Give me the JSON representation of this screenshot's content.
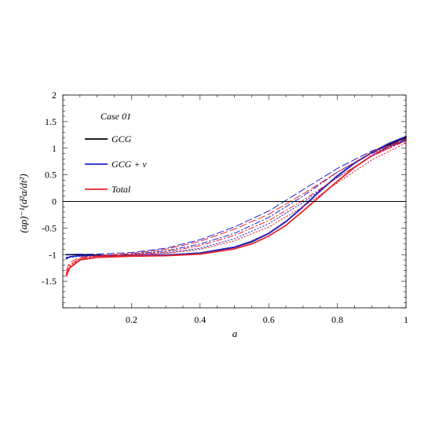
{
  "chart_data": {
    "type": "line",
    "title": "",
    "xlabel": "a",
    "ylabel": "(aρ)⁻¹(d²a/dt²)",
    "xlim": [
      0,
      1
    ],
    "ylim": [
      -2,
      2
    ],
    "x_ticks": [
      0.2,
      0.4,
      0.6,
      0.8,
      1
    ],
    "x_tick_labels": [
      "0.2",
      "0.4",
      "0.6",
      "0.8",
      "1"
    ],
    "y_ticks": [
      -1.5,
      -1,
      -0.5,
      0,
      0.5,
      1,
      1.5,
      2
    ],
    "y_tick_labels": [
      "-1.5",
      "-1",
      "-0.5",
      "0",
      "0.5",
      "1",
      "1.5",
      "2"
    ],
    "grid": false,
    "legend_title": "Case 01",
    "legend": [
      {
        "label": "GCG",
        "color": "#000000"
      },
      {
        "label": "GCG + ν",
        "color": "#1f23c8"
      },
      {
        "label": "Total",
        "color": "#e8212b"
      }
    ],
    "series": [
      {
        "style": "solid",
        "color": "#000000",
        "x": [
          0.01,
          0.05,
          0.1,
          0.2,
          0.3,
          0.4,
          0.5,
          0.55,
          0.6,
          0.65,
          0.7,
          0.75,
          0.8,
          0.85,
          0.9,
          0.95,
          1.0
        ],
        "y": [
          -1.0,
          -1.0,
          -1.01,
          -1.02,
          -1.01,
          -0.97,
          -0.86,
          -0.76,
          -0.6,
          -0.38,
          -0.1,
          0.2,
          0.48,
          0.72,
          0.92,
          1.07,
          1.2
        ]
      },
      {
        "style": "solid",
        "color": "#1f23c8",
        "x": [
          0.01,
          0.02,
          0.05,
          0.1,
          0.2,
          0.3,
          0.4,
          0.5,
          0.55,
          0.6,
          0.65,
          0.7,
          0.75,
          0.8,
          0.85,
          0.9,
          0.95,
          1.0
        ],
        "y": [
          -1.08,
          -1.04,
          -1.02,
          -1.02,
          -1.02,
          -1.01,
          -0.97,
          -0.86,
          -0.75,
          -0.6,
          -0.38,
          -0.1,
          0.2,
          0.48,
          0.72,
          0.92,
          1.09,
          1.22
        ]
      },
      {
        "style": "solid",
        "color": "#e8212b",
        "x": [
          0.01,
          0.02,
          0.05,
          0.1,
          0.2,
          0.3,
          0.4,
          0.5,
          0.55,
          0.6,
          0.65,
          0.7,
          0.75,
          0.8,
          0.85,
          0.9,
          0.95,
          1.0
        ],
        "y": [
          -1.4,
          -1.25,
          -1.1,
          -1.05,
          -1.03,
          -1.02,
          -0.99,
          -0.89,
          -0.8,
          -0.65,
          -0.45,
          -0.18,
          0.1,
          0.38,
          0.64,
          0.86,
          1.03,
          1.15
        ]
      },
      {
        "style": "dashed",
        "color": "#1f23c8",
        "x": [
          0.01,
          0.05,
          0.1,
          0.2,
          0.3,
          0.4,
          0.5,
          0.6,
          0.7,
          0.8,
          0.9,
          1.0
        ],
        "y": [
          -1.0,
          -0.99,
          -0.99,
          -0.96,
          -0.88,
          -0.72,
          -0.48,
          -0.18,
          0.22,
          0.62,
          0.95,
          1.15
        ]
      },
      {
        "style": "dashdot",
        "color": "#1f23c8",
        "x": [
          0.01,
          0.05,
          0.1,
          0.2,
          0.3,
          0.4,
          0.5,
          0.6,
          0.7,
          0.8,
          0.9,
          1.0
        ],
        "y": [
          -1.05,
          -1.02,
          -1.02,
          -0.99,
          -0.93,
          -0.8,
          -0.6,
          -0.3,
          0.1,
          0.55,
          0.9,
          1.17
        ]
      },
      {
        "style": "dotted",
        "color": "#1f23c8",
        "x": [
          0.01,
          0.05,
          0.1,
          0.2,
          0.3,
          0.4,
          0.5,
          0.6,
          0.7,
          0.8,
          0.9,
          1.0
        ],
        "y": [
          -1.06,
          -1.03,
          -1.02,
          -1.0,
          -0.97,
          -0.88,
          -0.7,
          -0.42,
          -0.02,
          0.45,
          0.85,
          1.15
        ]
      },
      {
        "style": "dashed",
        "color": "#e8212b",
        "x": [
          0.01,
          0.02,
          0.05,
          0.1,
          0.2,
          0.3,
          0.4,
          0.5,
          0.6,
          0.7,
          0.8,
          0.9,
          1.0
        ],
        "y": [
          -1.3,
          -1.15,
          -1.05,
          -1.02,
          -0.98,
          -0.9,
          -0.75,
          -0.52,
          -0.24,
          0.14,
          0.55,
          0.92,
          1.18
        ]
      },
      {
        "style": "dashdot",
        "color": "#e8212b",
        "x": [
          0.01,
          0.02,
          0.05,
          0.1,
          0.2,
          0.3,
          0.4,
          0.5,
          0.6,
          0.7,
          0.8,
          0.9,
          1.0
        ],
        "y": [
          -1.35,
          -1.2,
          -1.07,
          -1.03,
          -1.0,
          -0.95,
          -0.83,
          -0.64,
          -0.36,
          0.02,
          0.45,
          0.85,
          1.14
        ]
      },
      {
        "style": "dotted",
        "color": "#e8212b",
        "x": [
          0.01,
          0.02,
          0.05,
          0.1,
          0.2,
          0.3,
          0.4,
          0.5,
          0.6,
          0.7,
          0.8,
          0.9,
          1.0
        ],
        "y": [
          -1.38,
          -1.22,
          -1.08,
          -1.04,
          -1.01,
          -0.98,
          -0.9,
          -0.74,
          -0.48,
          -0.1,
          0.35,
          0.78,
          1.1
        ]
      }
    ]
  }
}
